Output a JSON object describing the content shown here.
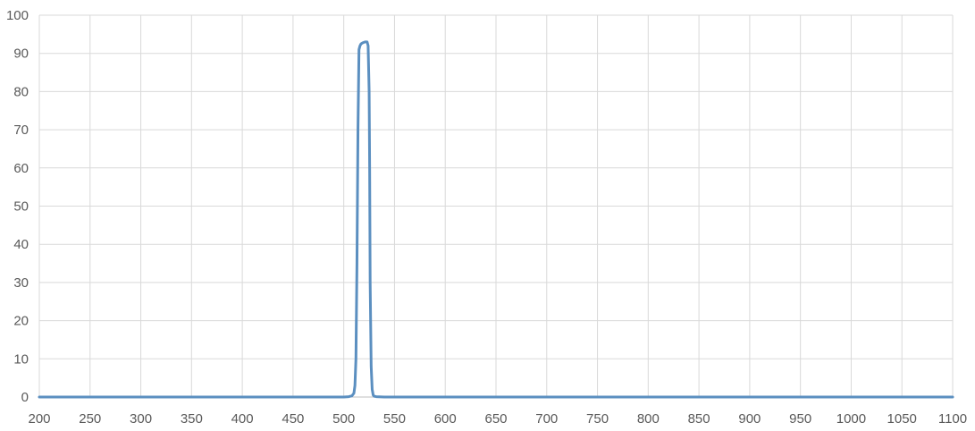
{
  "chart_data": {
    "type": "line",
    "title": "",
    "xlabel": "",
    "ylabel": "",
    "xlim": [
      200,
      1100
    ],
    "ylim": [
      0,
      100
    ],
    "x_ticks": [
      200,
      250,
      300,
      350,
      400,
      450,
      500,
      550,
      600,
      650,
      700,
      750,
      800,
      850,
      900,
      950,
      1000,
      1050,
      1100
    ],
    "y_ticks": [
      0,
      10,
      20,
      30,
      40,
      50,
      60,
      70,
      80,
      90,
      100
    ],
    "grid": true,
    "legend": "none",
    "colors": {
      "line": "#5b8fc0",
      "grid": "#d9d9d9",
      "axis": "#bfbfbf",
      "text": "#595959"
    },
    "series": [
      {
        "x": [
          200,
          300,
          400,
          450,
          500,
          505,
          508,
          510,
          511,
          512,
          513,
          514,
          515,
          516,
          517,
          519,
          521,
          523,
          524,
          525,
          525.5,
          526,
          527,
          528,
          529,
          530,
          532,
          540,
          600,
          700,
          800,
          900,
          1000,
          1100
        ],
        "y": [
          0,
          0,
          0,
          0,
          0,
          0.1,
          0.3,
          1,
          3,
          10,
          35,
          70,
          91,
          92,
          92.5,
          92.8,
          93,
          93,
          92,
          80,
          60,
          30,
          8,
          2,
          0.5,
          0.2,
          0.1,
          0,
          0,
          0,
          0,
          0,
          0,
          0
        ]
      }
    ]
  }
}
